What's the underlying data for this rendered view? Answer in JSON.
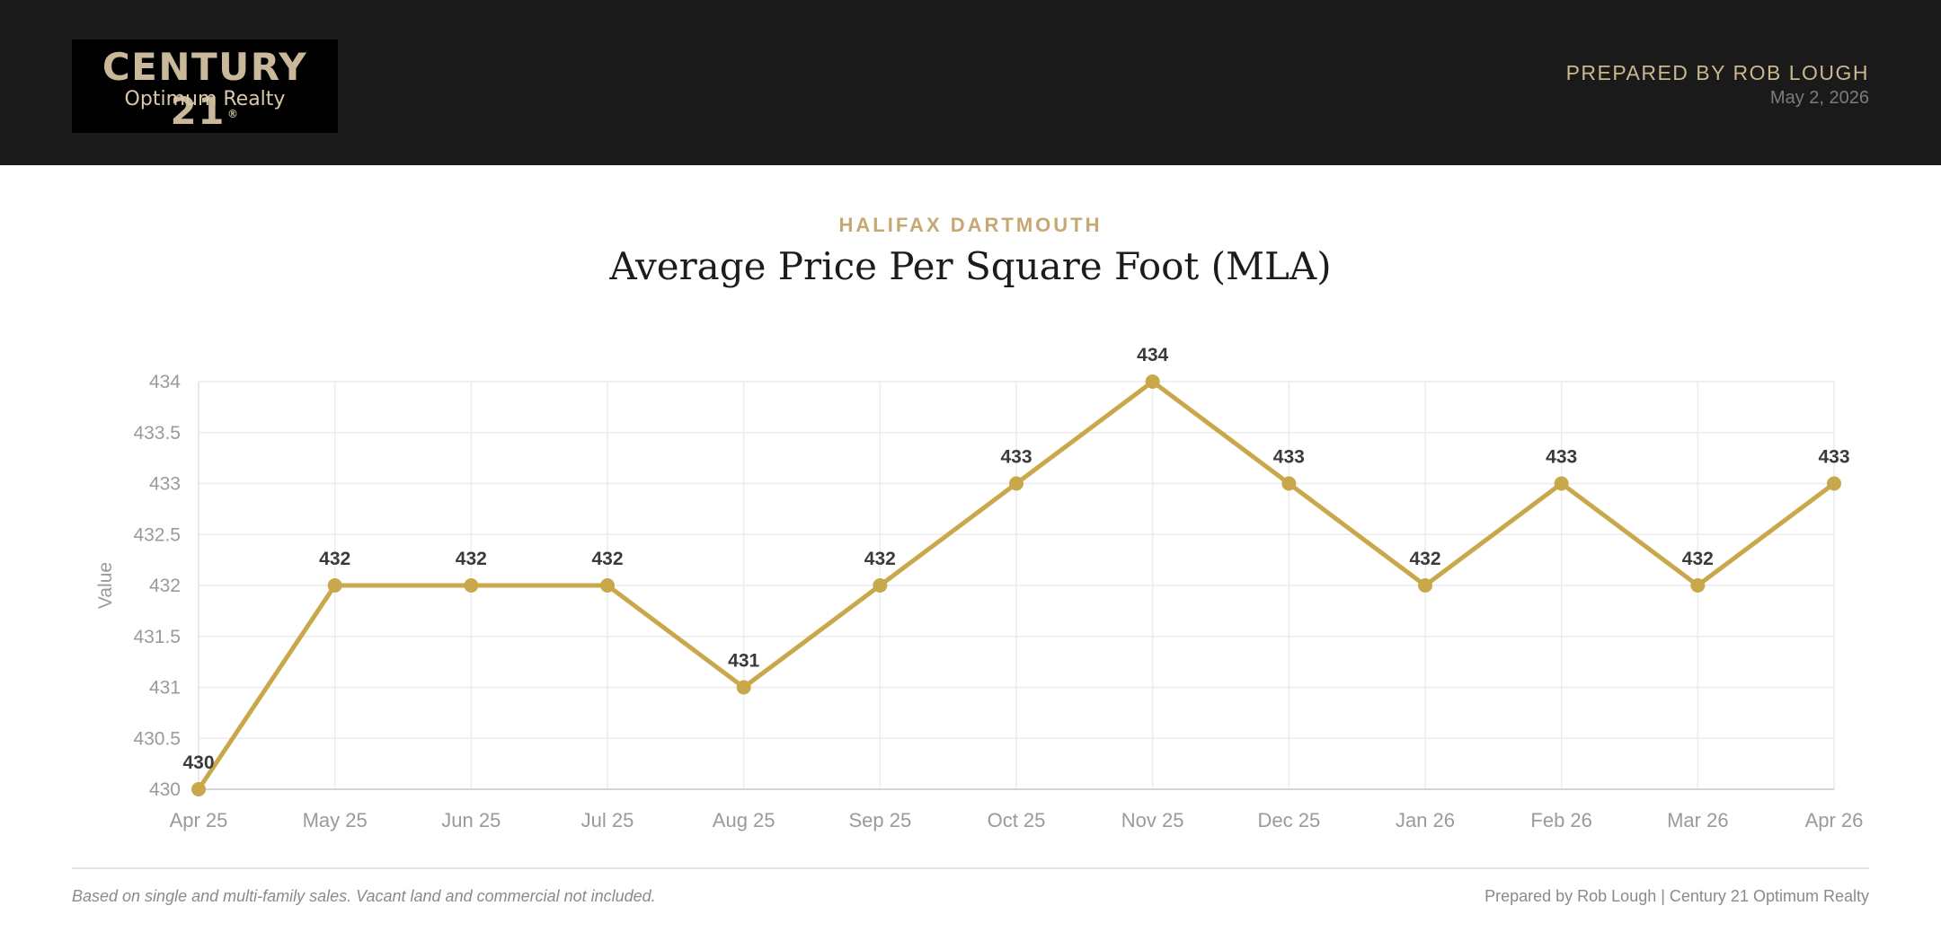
{
  "header": {
    "logo": {
      "brand": "CENTURY 21",
      "registered": "®",
      "subtitle": "Optimum Realty"
    },
    "prepared_by": "PREPARED BY ROB LOUGH",
    "date": "May 2, 2026"
  },
  "report": {
    "region": "HALIFAX DARTMOUTH",
    "title": "Average Price Per Square Foot (MLA)"
  },
  "colors": {
    "accent": "#c9a84c",
    "header_bg": "#1a1a1a",
    "gold_text": "#c9b78e"
  },
  "chart_data": {
    "type": "line",
    "categories": [
      "Apr 25",
      "May 25",
      "Jun 25",
      "Jul 25",
      "Aug 25",
      "Sep 25",
      "Oct 25",
      "Nov 25",
      "Dec 25",
      "Jan 26",
      "Feb 26",
      "Mar 26",
      "Apr 26"
    ],
    "series": [
      {
        "values": [
          430,
          432,
          432,
          432,
          431,
          432,
          433,
          434,
          433,
          432,
          433,
          432,
          433
        ],
        "color": "#c9a84c"
      }
    ],
    "data_labels": [
      "430",
      "432",
      "432",
      "432",
      "431",
      "432",
      "433",
      "434",
      "433",
      "432",
      "433",
      "432",
      "433"
    ],
    "ylabel": "Value",
    "ylim": [
      430,
      434
    ],
    "yticks": [
      430,
      430.5,
      431,
      431.5,
      432,
      432.5,
      433,
      433.5,
      434
    ],
    "ytick_labels": [
      "430",
      "430.5",
      "431",
      "431.5",
      "432",
      "432.5",
      "433",
      "433.5",
      "434"
    ],
    "grid": true,
    "legend": "none"
  },
  "footer": {
    "note": "Based on single and multi-family sales. Vacant land and commercial not included.",
    "credit": "Prepared by Rob Lough | Century 21 Optimum Realty"
  }
}
